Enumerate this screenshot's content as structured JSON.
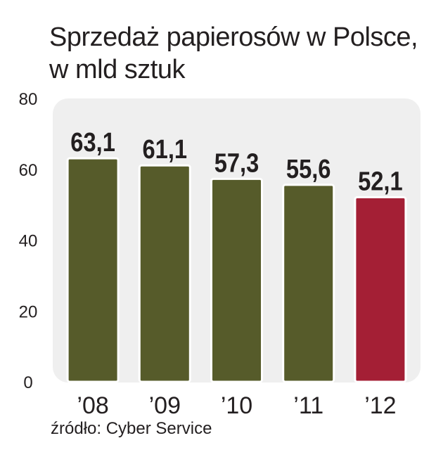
{
  "title_line1": "Sprzedaż papierosów w Polsce,",
  "title_line2": "w mld sztuk",
  "source": "źródło: Cyber Service",
  "chart_data": {
    "type": "bar",
    "categories": [
      "’08",
      "’09",
      "’10",
      "’11",
      "’12"
    ],
    "values": [
      63.1,
      61.1,
      57.3,
      55.6,
      52.1
    ],
    "value_labels": [
      "63,1",
      "61,1",
      "57,3",
      "55,6",
      "52,1"
    ],
    "ylim": [
      0,
      80
    ],
    "yticks": [
      0,
      20,
      40,
      60,
      80
    ],
    "grid": false,
    "colors": {
      "bar": "#565b2a",
      "highlight_bar": "#a41f35",
      "plot_background": "#efefef",
      "bar_border": "#ffffff"
    },
    "highlight_index": 4
  }
}
